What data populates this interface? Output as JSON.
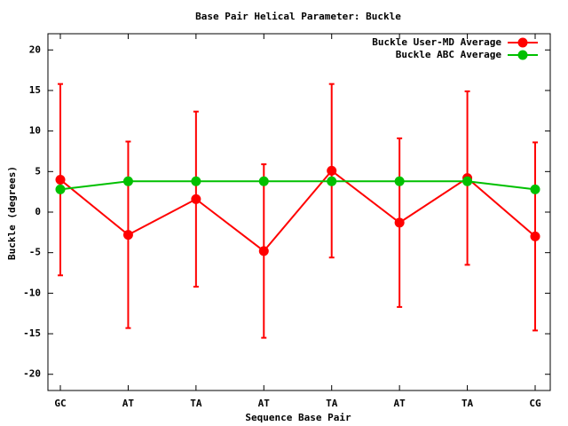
{
  "chart_data": {
    "type": "line",
    "title": "Base Pair Helical Parameter: Buckle",
    "x_label": "Sequence Base Pair",
    "y_label": "Buckle (degrees)",
    "categories": [
      "GC",
      "AT",
      "TA",
      "AT",
      "TA",
      "AT",
      "TA",
      "CG"
    ],
    "series": [
      {
        "name": "Buckle User-MD Average",
        "color": "#ff0000",
        "values": [
          4.0,
          -2.8,
          1.6,
          -4.8,
          5.1,
          -1.3,
          4.2,
          -3.0
        ],
        "errors": [
          11.8,
          11.5,
          10.8,
          10.7,
          10.7,
          10.4,
          10.7,
          11.6
        ]
      },
      {
        "name": "Buckle ABC Average",
        "color": "#00c000",
        "values": [
          2.8,
          3.8,
          3.8,
          3.8,
          3.8,
          3.8,
          3.8,
          2.8
        ]
      }
    ],
    "ylim": [
      -22,
      22
    ],
    "yticks": [
      -20,
      -15,
      -10,
      -5,
      0,
      5,
      10,
      15,
      20
    ],
    "legend": "top-right"
  }
}
